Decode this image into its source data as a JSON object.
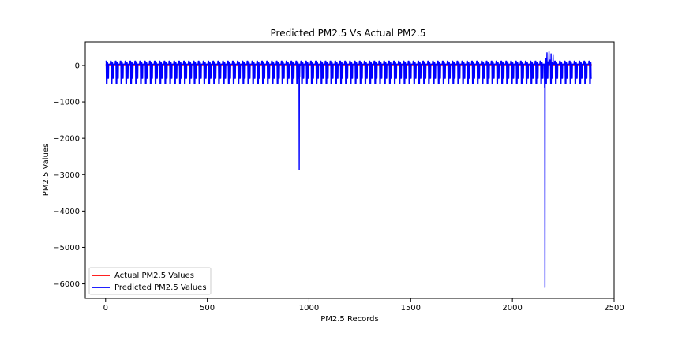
{
  "chart_data": {
    "type": "line",
    "title": "Predicted PM2.5 Vs Actual PM2.5",
    "xlabel": "PM2.5 Records",
    "ylabel": "PM2.5 Values",
    "xlim": [
      -100,
      2500
    ],
    "ylim": [
      -6400,
      650
    ],
    "xticks": [
      0,
      500,
      1000,
      1500,
      2000,
      2500
    ],
    "yticks": [
      0,
      -1000,
      -2000,
      -3000,
      -4000,
      -5000,
      -6000
    ],
    "xtick_labels": [
      "0",
      "500",
      "1000",
      "1500",
      "2000",
      "2500"
    ],
    "ytick_labels": [
      "0",
      "−1000",
      "−2000",
      "−3000",
      "−4000",
      "−5000",
      "−6000"
    ],
    "grid": false,
    "legend_position": "lower-left",
    "series": [
      {
        "name": "Actual PM2.5 Values",
        "color": "#ff0000",
        "x": [
          0,
          2390
        ],
        "y": [
          20,
          20
        ]
      },
      {
        "name": "Predicted PM2.5 Values",
        "color": "#0000ff",
        "pattern": {
          "x_start": 0,
          "x_end": 2390,
          "period": 24,
          "upper": 120,
          "lower": -500
        },
        "x": [
          950,
          952,
          954,
          956,
          2158,
          2160,
          2162,
          2164,
          2170,
          2175,
          2180,
          2185,
          2190,
          2195,
          2200,
          2205
        ],
        "y": [
          -200,
          -2870,
          -300,
          0,
          -600,
          -6100,
          -300,
          200,
          350,
          100,
          380,
          150,
          320,
          80,
          280,
          60
        ]
      }
    ]
  }
}
